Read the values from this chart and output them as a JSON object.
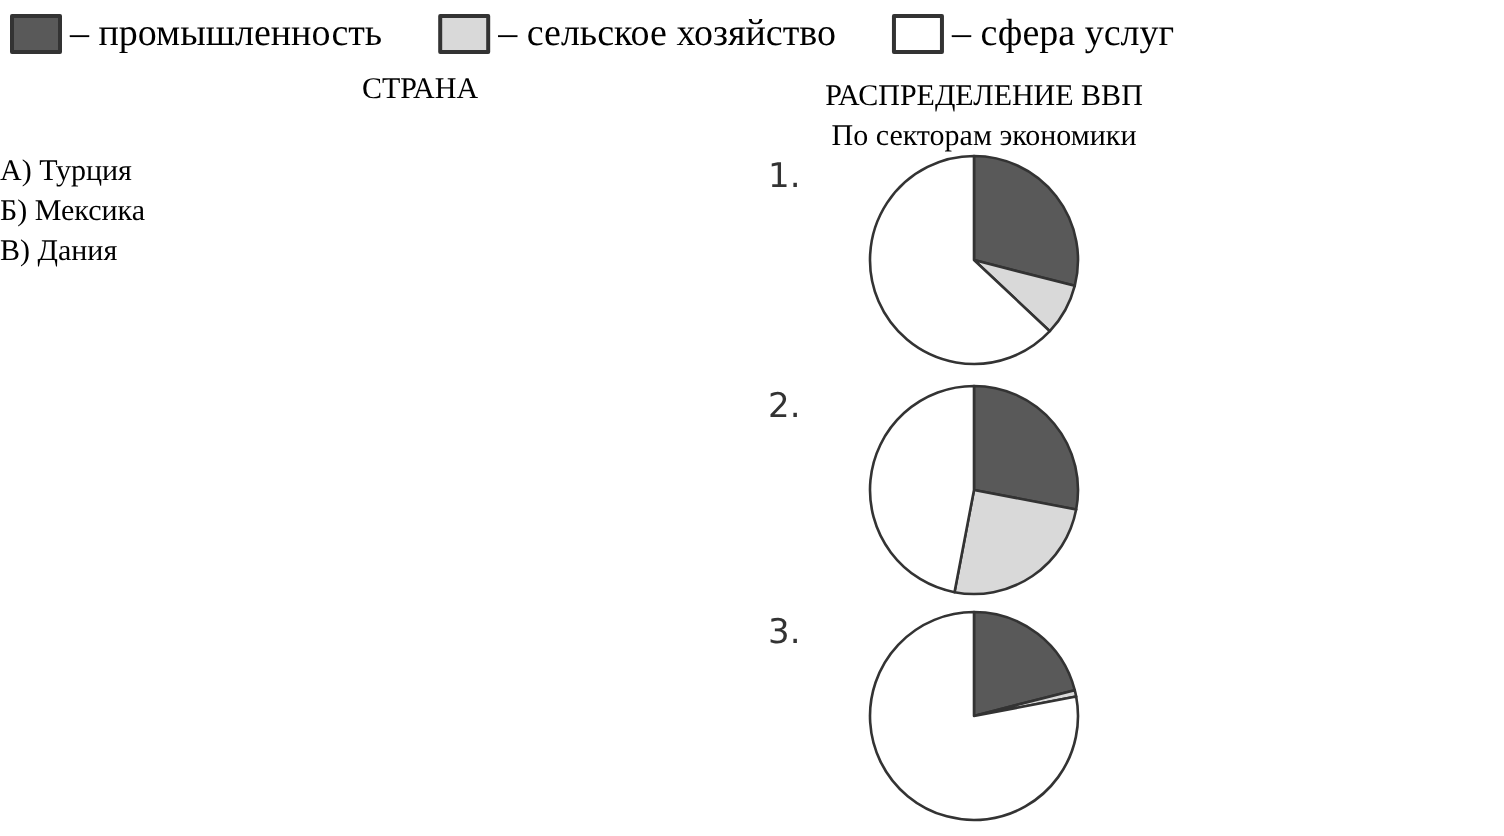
{
  "chart_data": [
    {
      "type": "other",
      "title": "СТРАНА",
      "annotations": [
        "А) Турция",
        "Б) Мексика",
        "В) Дания"
      ]
    },
    {
      "type": "pie",
      "title": "РАСПРЕДЕЛЕНИЕ ВВП",
      "subtitle": "По секторам экономики",
      "legend": "top",
      "categories": [
        "– промышленность",
        "– сельское хозяйство",
        "– сфера услуг"
      ],
      "colors": [
        "#595959",
        "#d9d9d9",
        "#ffffff"
      ],
      "series": [
        {
          "name": "1.",
          "values": [
            29,
            8,
            63
          ]
        },
        {
          "name": "2.",
          "values": [
            28,
            25,
            47
          ]
        },
        {
          "name": "3.",
          "values": [
            21,
            1,
            78
          ]
        }
      ]
    }
  ]
}
